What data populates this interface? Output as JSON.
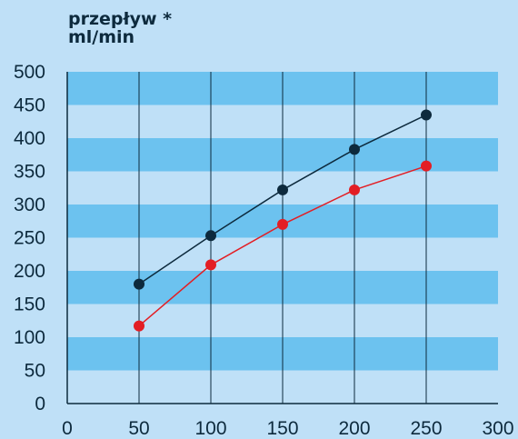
{
  "chart_data": {
    "type": "line",
    "ylabel": [
      "przepływ *",
      "ml/min"
    ],
    "xlim": [
      0,
      300
    ],
    "ylim": [
      0,
      500
    ],
    "x_ticks": [
      "0",
      "50",
      "100",
      "150",
      "200",
      "250",
      "300"
    ],
    "y_ticks": [
      "0",
      "50",
      "100",
      "150",
      "200",
      "250",
      "300",
      "350",
      "400",
      "450",
      "500"
    ],
    "x": [
      50,
      100,
      150,
      200,
      250
    ],
    "series": [
      {
        "color": "#0d2a3d",
        "values": [
          180,
          253,
          322,
          383,
          435
        ]
      },
      {
        "color": "#e31e24",
        "values": [
          117,
          209,
          270,
          322,
          358
        ]
      }
    ],
    "grid": "vertical lines at x ticks; horizontal alternating bands",
    "colors": {
      "background": "#bfe0f7",
      "band": "#6cc2ef",
      "axis": "#0d2a3d"
    }
  }
}
